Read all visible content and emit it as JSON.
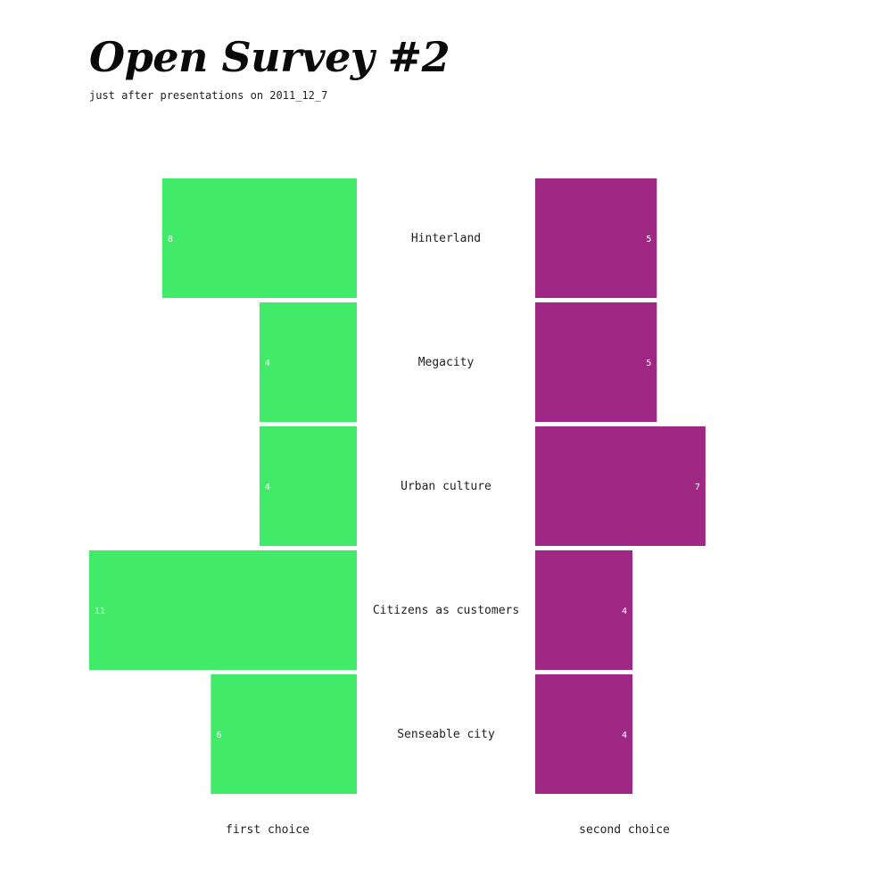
{
  "header": {
    "title": "Open Survey #2",
    "subtitle": "just after presentations on 2011_12_7"
  },
  "colors": {
    "first_choice": "#42ea69",
    "second_choice": "#9e2884",
    "value_label": "#ffffff",
    "text": "#222222"
  },
  "chart_data": {
    "type": "bar",
    "orientation": "horizontal",
    "layout": "back-to-back",
    "categories": [
      "Hinterland",
      "Megacity",
      "Urban culture",
      "Citizens as customers",
      "Senseable city"
    ],
    "series": [
      {
        "name": "first choice",
        "values": [
          8,
          4,
          4,
          11,
          6
        ]
      },
      {
        "name": "second choice",
        "values": [
          5,
          5,
          7,
          4,
          4
        ]
      }
    ],
    "title": "Open Survey #2",
    "subtitle": "just after presentations on 2011_12_7",
    "xlim": [
      0,
      11
    ],
    "grid": false,
    "data_labels": true
  }
}
